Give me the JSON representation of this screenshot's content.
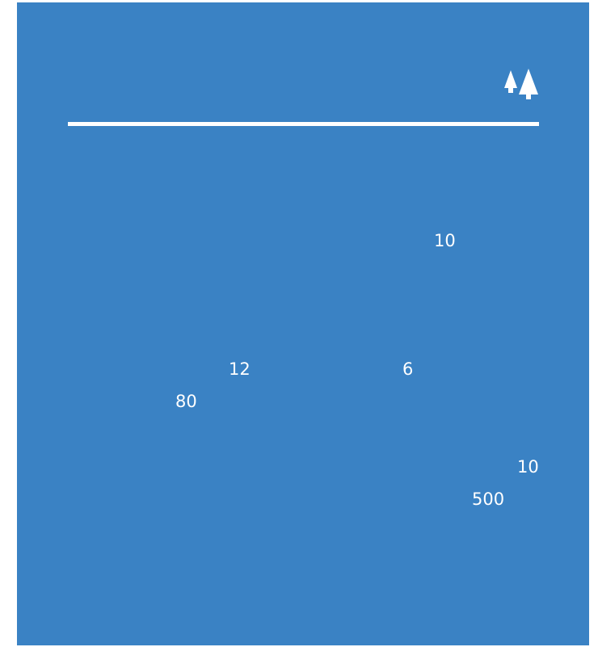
{
  "logo": {
    "icon": "twin-trees-icon",
    "color": "#ffffff"
  },
  "background_color": "#3a82c4",
  "numbers": [
    {
      "text": "10"
    },
    {
      "text": "12"
    },
    {
      "text": "6"
    },
    {
      "text": "80"
    },
    {
      "text": "10"
    },
    {
      "text": "500"
    }
  ]
}
